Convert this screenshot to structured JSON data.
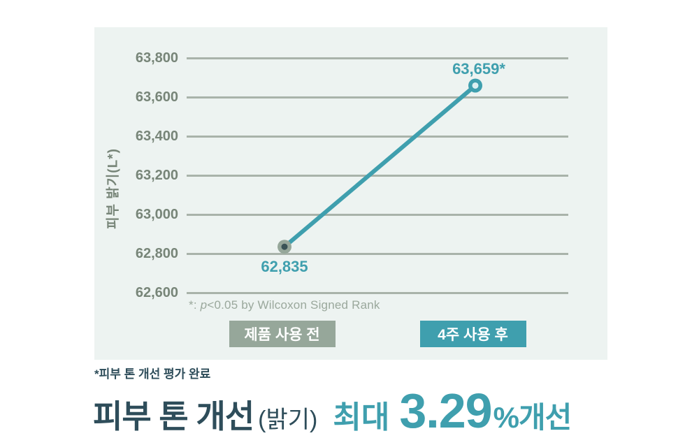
{
  "colors": {
    "panel_bg": "#edf3f1",
    "gridline": "#a9b3aa",
    "tick_label": "#778578",
    "teal": "#3f9fae",
    "sage": "#96a79a",
    "dark_text": "#2e4d5a",
    "footnote": "#9aa89c",
    "point_before_center": "#3a5356",
    "point_after_center": "#dcf0f2"
  },
  "chart_data": {
    "type": "line",
    "title": "",
    "categories": [
      "제품 사용 전",
      "4주 사용 후"
    ],
    "values": [
      62835,
      63659
    ],
    "point_labels": [
      "62,835",
      "63,659*"
    ],
    "ylabel": "피부 밝기(L*)",
    "yticks": [
      63800,
      63600,
      63400,
      63200,
      63000,
      62800,
      62600
    ],
    "ytick_labels": [
      "63,800",
      "63,600",
      "63,400",
      "63,200",
      "63,000",
      "62,800",
      "62,600"
    ],
    "ylim": [
      62600,
      63957
    ],
    "grid": true,
    "legend_position": "bottom",
    "footnote": {
      "prefix": "*: ",
      "italic": "p",
      "rest": "<0.05 by Wilcoxon Signed Rank"
    }
  },
  "legend": {
    "before": "제품 사용 전",
    "after": "4주 사용 후"
  },
  "caption": {
    "note": "*피부 톤 개선 평가 완료",
    "headline_dark": "피부 톤 개선",
    "headline_paren": "(밝기)",
    "headline_max": "최대",
    "headline_value": "3.29",
    "headline_suffix": "%개선"
  }
}
